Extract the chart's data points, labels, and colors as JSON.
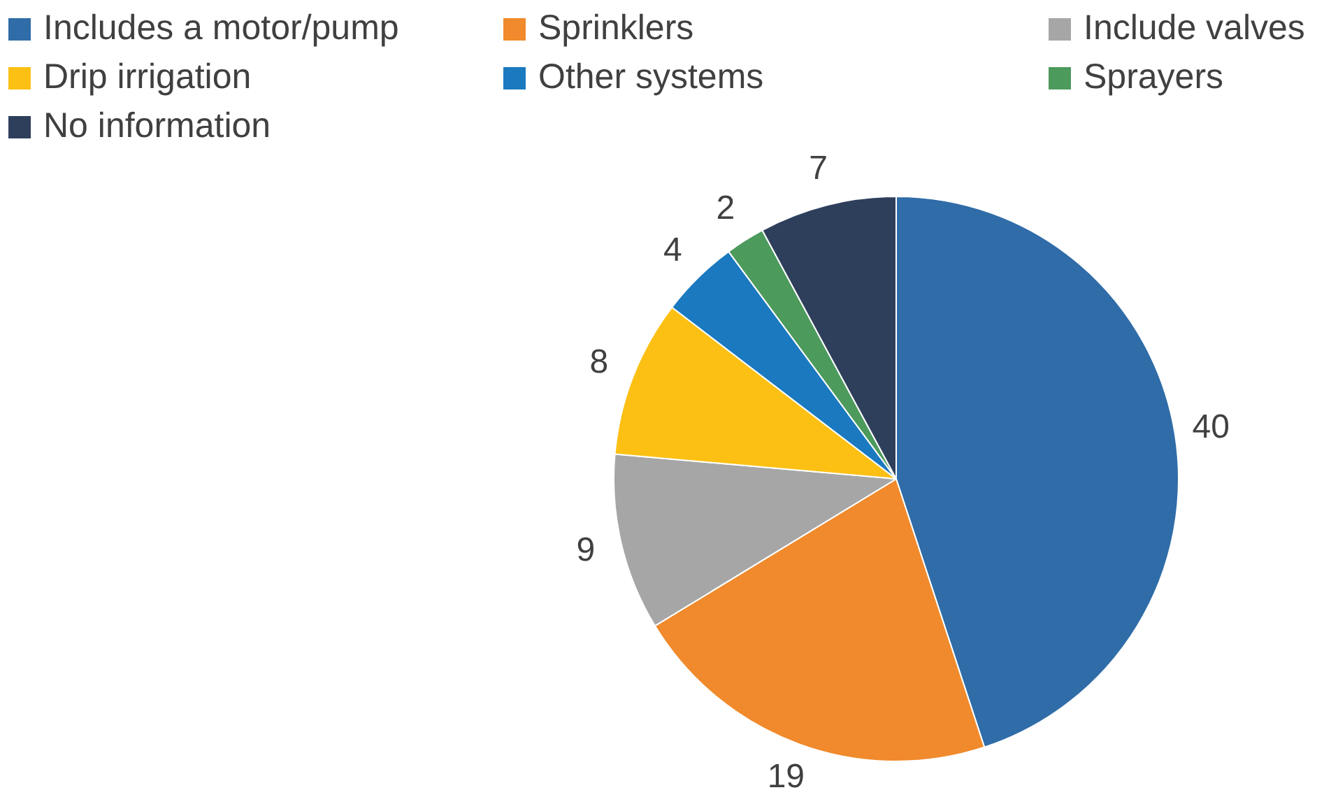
{
  "chart_data": {
    "type": "pie",
    "categories": [
      "Includes a motor/pump",
      "Sprinklers",
      "Include valves",
      "Drip irrigation",
      "Other systems",
      "Sprayers",
      "No information"
    ],
    "values": [
      40,
      19,
      9,
      8,
      4,
      2,
      7
    ],
    "colors": [
      "#2f6ca8",
      "#f08a2c",
      "#a6a6a6",
      "#fcc014",
      "#1b79c0",
      "#4c9a5c",
      "#2e3f5c"
    ],
    "data_labels": true,
    "legend": "top"
  }
}
